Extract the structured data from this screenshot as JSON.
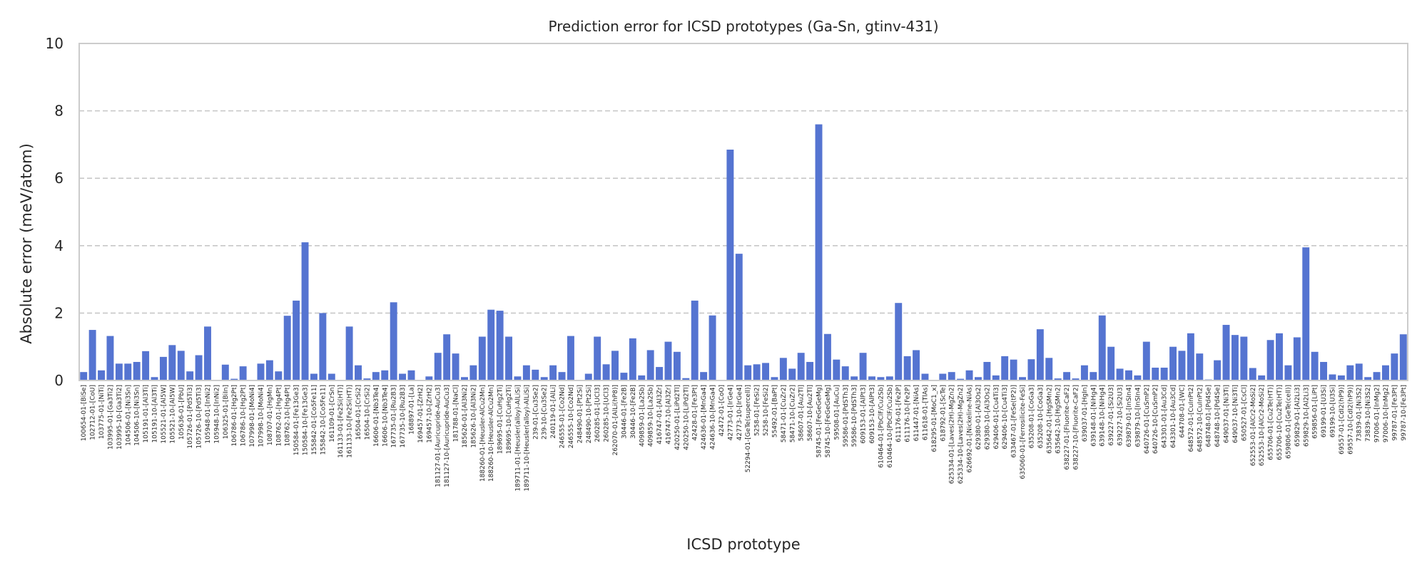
{
  "chart_data": {
    "type": "bar",
    "title": "Prediction error for ICSD prototypes (Ga-Sn, gtinv-431)",
    "xlabel": "ICSD prototype",
    "ylabel": "Absolute error (meV/atom)",
    "ylim": [
      0,
      10
    ],
    "yticks": [
      0,
      2,
      4,
      6,
      8,
      10
    ],
    "grid": "y-dashed",
    "bar_color": "#5574d1",
    "categories": [
      "100654-01-[BiSe]",
      "102712-01-[CoU]",
      "103775-01-[NiTi]",
      "103995-01-[Ga3Ti2]",
      "103995-10-[Ga3Ti2]",
      "104506-01-[Ni3Sn]",
      "104506-10-[Ni3Sn]",
      "105191-01-[Al3Ti]",
      "105191-10-[Al3Ti]",
      "105521-01-[Al5W]",
      "105521-10-[Al5W]",
      "105636-01-[PbU]",
      "105726-01-[Pd5Ti3]",
      "105726-10-[Pd5Ti3]",
      "105948-01-[InNi2]",
      "105948-10-[InNi2]",
      "106325-01-[BiIn]",
      "106786-01-[Hg2Pt]",
      "106786-10-[Hg2Pt]",
      "107998-01-[MoNi4]",
      "107998-10-[MoNi4]",
      "108707-01-[HgMn]",
      "108762-01-[Hg4Pt]",
      "108762-10-[Hg4Pt]",
      "150584-01-[Fe13Ge3]",
      "150584-10-[Fe13Ge3]",
      "155842-01-[Co5Fe11]",
      "155842-10-[Co5Fe11]",
      "161109-01-[CrSn]",
      "161133-01-[Fe2Si(HT)]",
      "161133-10-[Fe2Si(HT)]",
      "16504-01-[CrSi2]",
      "16504-10-[CrSi2]",
      "16606-01-[Nb3Te4]",
      "16606-10-[Nb3Te4]",
      "167735-01-[Ru2B3]",
      "167735-10-[Ru2B3]",
      "168897-01-[La]",
      "169457-01-[ZrH2]",
      "169457-10-[ZrH2]",
      "181127-01-[Auricupride-AuCu3]",
      "181127-10-[Auricupride-AuCu3]",
      "181788-01-[NaCl]",
      "185626-01-[Al3Ni2]",
      "185626-10-[Al3Ni2]",
      "188260-01-[Heusler-AlCu2Mn]",
      "188260-10-[Heusler-AlCu2Mn]",
      "189695-01-[CuHg2Ti]",
      "189695-10-[CuHg2Ti]",
      "189711-01-[Heusler(alloy)-AlLiSi]",
      "189711-10-[Heusler(alloy)-AlLiSi]",
      "239-01-[Cu3Se2]",
      "239-10-[Cu3Se2]",
      "240119-01-[AlLi]",
      "246555-01-[Co2Nd]",
      "246555-10-[Co2Nd]",
      "248490-01-[Pt2Si]",
      "248490-10-[Pt2Si]",
      "260285-01-[UCl3]",
      "260285-10-[UCl3]",
      "262070-01-[AlLi(hP8)]",
      "30446-01-[Fe2B]",
      "30446-10-[Fe2B]",
      "409859-01-[La2Sb]",
      "409859-10-[La2Sb]",
      "416747-01-[Al3Zr]",
      "416747-10-[Al3Zr]",
      "420250-01-[LiPd2Tl]",
      "420250-10-[LiPd2Tl]",
      "42428-01-[Fe3Pt]",
      "424636-01-[MnGa4]",
      "424636-10-[MnGa4]",
      "42472-01-[CoO]",
      "42773-01-[IrGe4]",
      "42773-10-[IrGe4]",
      "52294-01-[GeTe(supercell)]",
      "5258-01-[FeSi2]",
      "5258-10-[FeSi2]",
      "55492-01-[BaPt]",
      "58471-01-[CuZr2]",
      "58471-10-[CuZr2]",
      "58607-01-[Au2Tl]",
      "58607-10-[Au2Tl]",
      "58745-01-[FeGeGeMg]",
      "58745-10-[FeGeGeMg]",
      "59508-01-[AuCu]",
      "59586-01-[PdSTh3]",
      "59586-10-[PdSTh3]",
      "609153-01-[AlPt3]",
      "609153-10-[AlPt3]",
      "610464-01-[PbClF/Cu2Sb]",
      "610464-10-[PbClF/Cu2Sb]",
      "611176-01-[Fe2P]",
      "611176-10-[Fe2P]",
      "611447-01-[NiAs]",
      "611618-01-[TlAs]",
      "618295-01-[MoC1_x]",
      "618792-01-[ScTe]",
      "625334-01-[Laves(2H)-MgZn2]",
      "625334-10-[Laves(2H)-MgZn2]",
      "626692-01-[Nickeline-NiAs]",
      "629380-01-[Al3Os2]",
      "629380-10-[Al3Os2]",
      "629406-01-[Cu4Ti3]",
      "629406-10-[Cu4Ti3]",
      "633467-01-[FeSe(tP2)]",
      "635060-01-[Ferrosilicite-FeSi]",
      "635208-01-[CoGa3]",
      "635208-10-[CoGa3]",
      "635642-01-[HgSMn2]",
      "635642-10-[HgSMn2]",
      "638227-01-[Fluorite-CaF2]",
      "638227-10-[Fluorite-CaF2]",
      "639037-01-[HgIn]",
      "639148-01-[NiHg4]",
      "639148-10-[NiHg4]",
      "639227-01-[Si2U3]",
      "639227-10-[Si2U3]",
      "639879-01-[InSIn4]",
      "639879-10-[InSIn4]",
      "640726-01-[CuSmP2]",
      "640726-10-[CuSmP2]",
      "643301-01-[Au3Cd]",
      "643301-10-[Au3Cd]",
      "644708-01-[WC]",
      "648572-01-[CuInPt2]",
      "648572-10-[CuInPt2]",
      "648748-01-[Pd4Se]",
      "648748-10-[Pd4Se]",
      "649037-01-[Ni3Ti]",
      "649037-10-[Ni3Ti]",
      "650527-01-[CsCl]",
      "652553-01-[AlCr2-MoSi2]",
      "652553-10-[AlCr2-MoSi2]",
      "655706-01-[Cu2Te(HT)]",
      "655706-10-[Cu2Te(HT)]",
      "659806-01-[GeTe(cell)]",
      "659829-01-[Al2Li3]",
      "659829-10-[Al2Li3]",
      "659856-01-[LiPt]",
      "69199-01-[U3Si]",
      "69199-10-[U3Si]",
      "69557-01-[CdI2(hP9)]",
      "69557-10-[CdI2(hP9)]",
      "73839-01-[Ni3S2]",
      "73839-10-[Ni3S2]",
      "97006-01-[InMg2]",
      "97006-10-[InMg2]",
      "99787-01-[Fe3Pt]",
      "99787-10-[Fe3Pt]"
    ],
    "values": [
      0.25,
      1.5,
      0.3,
      1.32,
      0.5,
      0.5,
      0.55,
      0.87,
      0.1,
      0.7,
      1.05,
      0.88,
      0.27,
      0.75,
      1.6,
      0.02,
      0.47,
      0.05,
      0.42,
      0.02,
      0.5,
      0.6,
      0.27,
      1.92,
      2.37,
      4.1,
      0.2,
      2.0,
      0.2,
      0.0,
      1.6,
      0.45,
      0.06,
      0.25,
      0.3,
      2.32,
      0.2,
      0.3,
      0.02,
      0.12,
      0.82,
      1.37,
      0.8,
      0.1,
      0.45,
      1.3,
      2.1,
      2.07,
      1.3,
      0.12,
      0.45,
      0.32,
      0.1,
      0.45,
      0.25,
      1.32,
      0.02,
      0.2,
      1.3,
      0.48,
      0.88,
      0.23,
      1.25,
      0.15,
      0.9,
      0.4,
      1.15,
      0.85,
      0.07,
      2.37,
      0.25,
      1.93,
      0.02,
      6.85,
      3.76,
      0.45,
      0.48,
      0.52,
      0.1,
      0.67,
      0.35,
      0.82,
      0.55,
      7.6,
      1.38,
      0.62,
      0.42,
      0.12,
      0.82,
      0.12,
      0.1,
      0.12,
      2.3,
      0.72,
      0.9,
      0.2,
      0.02,
      0.2,
      0.25,
      0.05,
      0.3,
      0.1,
      0.55,
      0.15,
      0.72,
      0.62,
      0.1,
      0.63,
      1.52,
      0.67,
      0.06,
      0.25,
      0.06,
      0.45,
      0.25,
      1.93,
      1.0,
      0.35,
      0.3,
      0.15,
      1.15,
      0.38,
      0.38,
      1.0,
      0.88,
      1.4,
      0.8,
      0.03,
      0.6,
      1.65,
      1.35,
      1.3,
      0.37,
      0.15,
      1.2,
      1.4,
      0.45,
      1.28,
      3.95,
      0.85,
      0.55,
      0.18,
      0.15,
      0.45,
      0.5,
      0.1,
      0.25,
      0.45,
      0.8,
      1.37
    ]
  }
}
